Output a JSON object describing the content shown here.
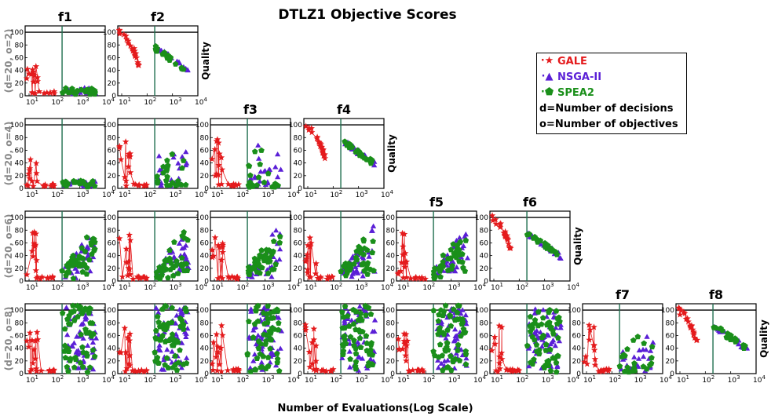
{
  "title": "DTLZ1 Objective Scores",
  "xlabel": "Number of Evaluations(Log Scale)",
  "quality_label": "Quality",
  "row_labels": [
    "(d=20, o=2)",
    "(d=20, o=4)",
    "(d=20, o=6)",
    "(d=20, o=8)"
  ],
  "col_labels": [
    "f1",
    "f2",
    "f3",
    "f4",
    "f5",
    "f6",
    "f7",
    "f8"
  ],
  "legend": {
    "items": [
      {
        "label": "GALE",
        "color": "#e41a1c",
        "marker": "★"
      },
      {
        "label": "NSGA-II",
        "color": "#5a1fd6",
        "marker": "▲"
      },
      {
        "label": "SPEA2",
        "color": "#1a8f1a",
        "marker": "⬟"
      }
    ],
    "notes": [
      "d=Number of decisions",
      "o=Number of objectives"
    ]
  },
  "colors": {
    "gale": "#e41a1c",
    "nsga": "#5a1fd6",
    "spea": "#1a8f1a",
    "vline": "#1f6f4f"
  },
  "chart_data": {
    "type": "scatter",
    "title": "DTLZ1 Objective Scores",
    "xlabel": "Number of Evaluations(Log Scale)",
    "ylabel": "Quality",
    "x_scale": "log",
    "xlim": [
      7,
      10000
    ],
    "ylim": [
      0,
      110
    ],
    "x_ticks": [
      "10^1",
      "10^2",
      "10^3",
      "10^4"
    ],
    "y_ticks": [
      0,
      20,
      40,
      60,
      80,
      100
    ],
    "reference_line_x": 200,
    "reference_line_y": 100,
    "series_names": [
      "GALE",
      "NSGA-II",
      "SPEA2"
    ],
    "panels": [
      {
        "row": 0,
        "col": 0,
        "objective": "f1",
        "rowlabel": "(d=20, o=2)",
        "pattern": "low"
      },
      {
        "row": 0,
        "col": 1,
        "objective": "f2",
        "rowlabel": "(d=20, o=2)",
        "pattern": "decline"
      },
      {
        "row": 1,
        "col": 0,
        "objective": "f1",
        "rowlabel": "(d=20, o=4)",
        "pattern": "low"
      },
      {
        "row": 1,
        "col": 1,
        "objective": "f2",
        "rowlabel": "(d=20, o=4)",
        "pattern": "mid"
      },
      {
        "row": 1,
        "col": 2,
        "objective": "f3",
        "rowlabel": "(d=20, o=4)",
        "pattern": "mid"
      },
      {
        "row": 1,
        "col": 3,
        "objective": "f4",
        "rowlabel": "(d=20, o=4)",
        "pattern": "decline"
      },
      {
        "row": 2,
        "col": 0,
        "objective": "f1",
        "rowlabel": "(d=20, o=6)",
        "pattern": "spread"
      },
      {
        "row": 2,
        "col": 1,
        "objective": "f2",
        "rowlabel": "(d=20, o=6)",
        "pattern": "spread"
      },
      {
        "row": 2,
        "col": 2,
        "objective": "f3",
        "rowlabel": "(d=20, o=6)",
        "pattern": "spread"
      },
      {
        "row": 2,
        "col": 3,
        "objective": "f4",
        "rowlabel": "(d=20, o=6)",
        "pattern": "spread"
      },
      {
        "row": 2,
        "col": 4,
        "objective": "f5",
        "rowlabel": "(d=20, o=6)",
        "pattern": "spread"
      },
      {
        "row": 2,
        "col": 5,
        "objective": "f6",
        "rowlabel": "(d=20, o=6)",
        "pattern": "decline"
      },
      {
        "row": 3,
        "col": 0,
        "objective": "f1",
        "rowlabel": "(d=20, o=8)",
        "pattern": "full"
      },
      {
        "row": 3,
        "col": 1,
        "objective": "f2",
        "rowlabel": "(d=20, o=8)",
        "pattern": "full"
      },
      {
        "row": 3,
        "col": 2,
        "objective": "f3",
        "rowlabel": "(d=20, o=8)",
        "pattern": "full"
      },
      {
        "row": 3,
        "col": 3,
        "objective": "f4",
        "rowlabel": "(d=20, o=8)",
        "pattern": "full"
      },
      {
        "row": 3,
        "col": 4,
        "objective": "f5",
        "rowlabel": "(d=20, o=8)",
        "pattern": "full"
      },
      {
        "row": 3,
        "col": 5,
        "objective": "f6",
        "rowlabel": "(d=20, o=8)",
        "pattern": "full"
      },
      {
        "row": 3,
        "col": 6,
        "objective": "f7",
        "rowlabel": "(d=20, o=8)",
        "pattern": "mid"
      },
      {
        "row": 3,
        "col": 7,
        "objective": "f8",
        "rowlabel": "(d=20, o=8)",
        "pattern": "decline"
      }
    ]
  }
}
